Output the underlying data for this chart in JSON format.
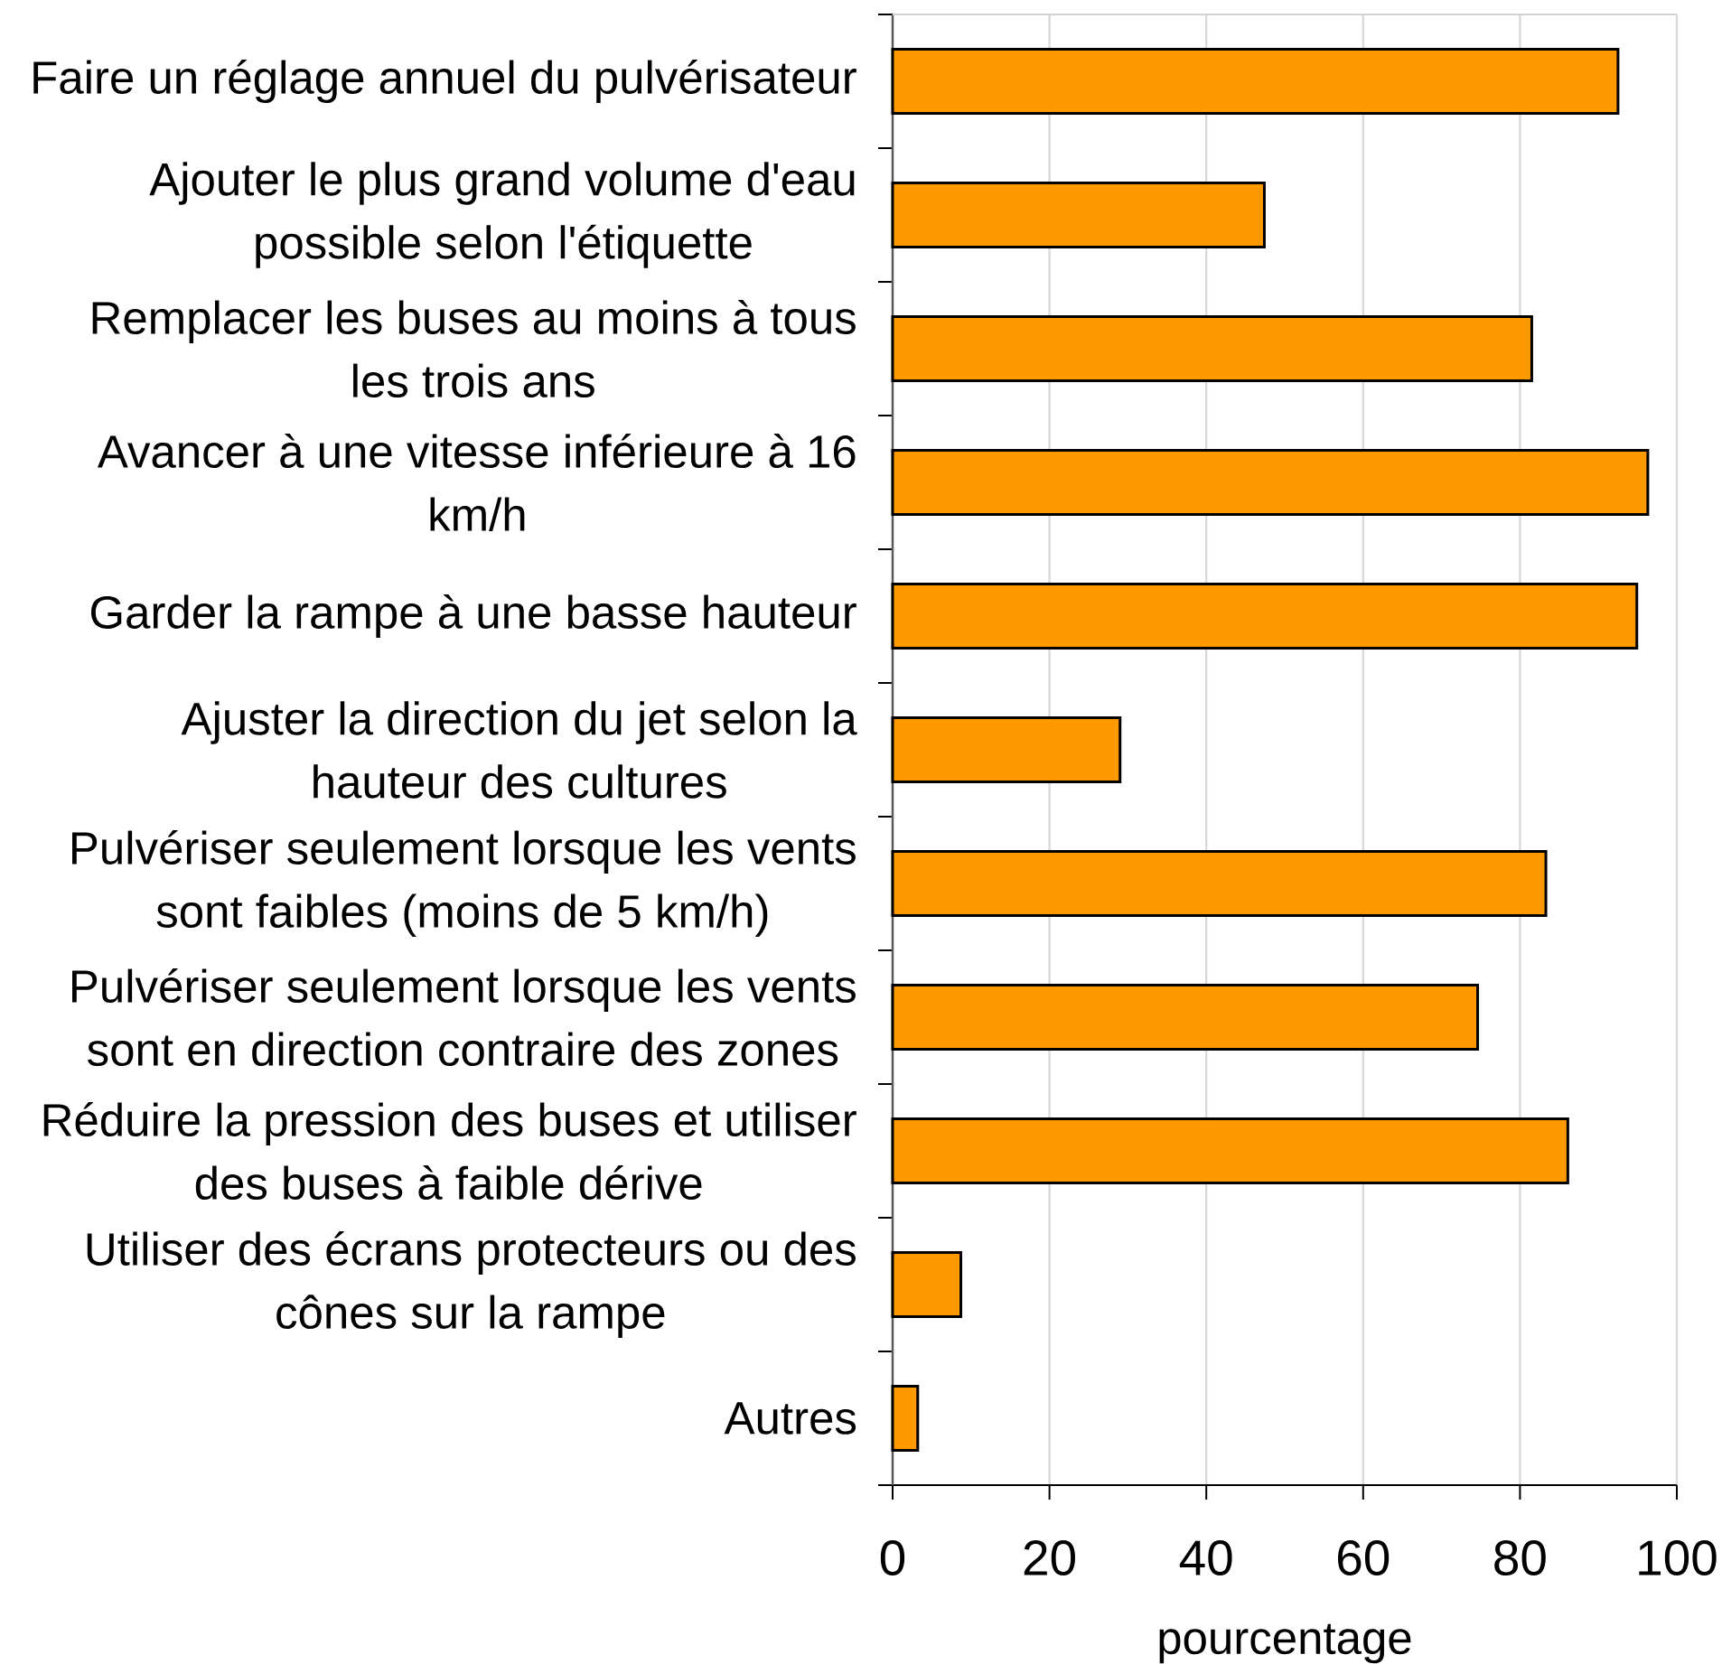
{
  "chart_data": {
    "type": "bar",
    "orientation": "horizontal",
    "categories": [
      "Faire un réglage annuel du pulvérisateur",
      "Ajouter le plus grand volume d'eau possible selon l'étiquette",
      "Remplacer les buses au moins à tous les trois ans",
      "Avancer à une vitesse inférieure à 16 km/h",
      "Garder la rampe à une basse hauteur",
      "Ajuster la direction du jet selon la hauteur des cultures",
      "Pulvériser seulement lorsque les vents sont faibles (moins de 5 km/h)",
      "Pulvériser seulement lorsque les vents sont en direction contraire des zones",
      "Réduire la pression des buses et utiliser des buses à faible dérive",
      "Utiliser des écrans protecteurs ou des cônes sur la rampe",
      "Autres"
    ],
    "values": [
      92.5,
      47.4,
      81.5,
      96.3,
      94.9,
      29.0,
      83.3,
      74.6,
      86.1,
      8.7,
      3.2
    ],
    "color": "#ff9900",
    "xlabel": "pourcentage",
    "xlim": [
      0,
      100
    ],
    "xticks": [
      0,
      20,
      40,
      60,
      80,
      100
    ],
    "grid": "x"
  }
}
